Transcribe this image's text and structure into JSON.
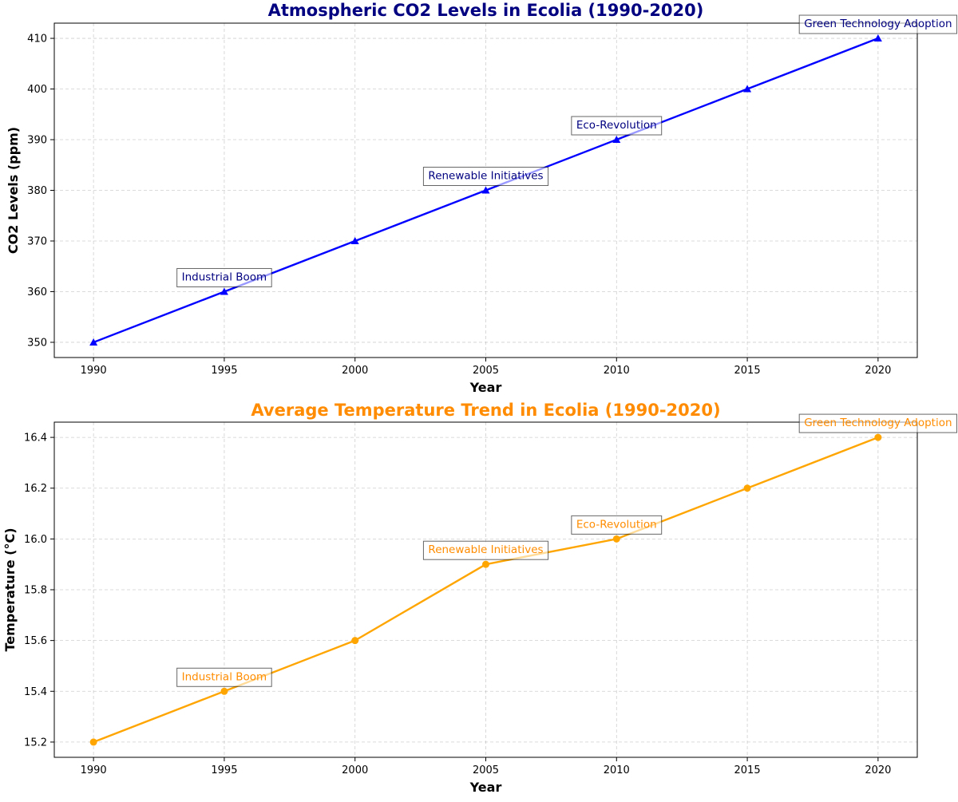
{
  "chart_data": [
    {
      "type": "line",
      "title": "Atmospheric CO2 Levels in Ecolia (1990-2020)",
      "title_color": "#000080",
      "xlabel": "Year",
      "ylabel": "CO2 Levels (ppm)",
      "x": [
        1990,
        1995,
        2000,
        2005,
        2010,
        2015,
        2020
      ],
      "series": [
        {
          "values": [
            350,
            360,
            370,
            380,
            390,
            400,
            410
          ],
          "color": "#0000ff",
          "marker": "triangle"
        }
      ],
      "xlim": [
        1988.5,
        2021.5
      ],
      "ylim": [
        347,
        413
      ],
      "xticks": [
        1990,
        1995,
        2000,
        2005,
        2010,
        2015,
        2020
      ],
      "yticks": [
        350,
        360,
        370,
        380,
        390,
        400,
        410
      ],
      "ytick_labels": [
        "350",
        "360",
        "370",
        "380",
        "390",
        "400",
        "410"
      ],
      "grid": true,
      "annotation_color": "#000080",
      "annotations": [
        {
          "x": 1995,
          "y": 360,
          "text": "Industrial Boom"
        },
        {
          "x": 2005,
          "y": 380,
          "text": "Renewable Initiatives"
        },
        {
          "x": 2010,
          "y": 390,
          "text": "Eco-Revolution"
        },
        {
          "x": 2020,
          "y": 410,
          "text": "Green Technology Adoption"
        }
      ]
    },
    {
      "type": "line",
      "title": "Average Temperature Trend in Ecolia (1990-2020)",
      "title_color": "#ff8c00",
      "xlabel": "Year",
      "ylabel": "Temperature (°C)",
      "x": [
        1990,
        1995,
        2000,
        2005,
        2010,
        2015,
        2020
      ],
      "series": [
        {
          "values": [
            15.2,
            15.4,
            15.6,
            15.9,
            16.0,
            16.2,
            16.4
          ],
          "color": "#ffa500",
          "marker": "circle"
        }
      ],
      "xlim": [
        1988.5,
        2021.5
      ],
      "ylim": [
        15.14,
        16.46
      ],
      "xticks": [
        1990,
        1995,
        2000,
        2005,
        2010,
        2015,
        2020
      ],
      "yticks": [
        15.2,
        15.4,
        15.6,
        15.8,
        16.0,
        16.2,
        16.4
      ],
      "ytick_labels": [
        "15.2",
        "15.4",
        "15.6",
        "15.8",
        "16.0",
        "16.2",
        "16.4"
      ],
      "grid": true,
      "annotation_color": "#ff8c00",
      "annotations": [
        {
          "x": 1995,
          "y": 15.4,
          "text": "Industrial Boom"
        },
        {
          "x": 2005,
          "y": 15.9,
          "text": "Renewable Initiatives"
        },
        {
          "x": 2010,
          "y": 16.0,
          "text": "Eco-Revolution"
        },
        {
          "x": 2020,
          "y": 16.4,
          "text": "Green Technology Adoption"
        }
      ]
    }
  ]
}
